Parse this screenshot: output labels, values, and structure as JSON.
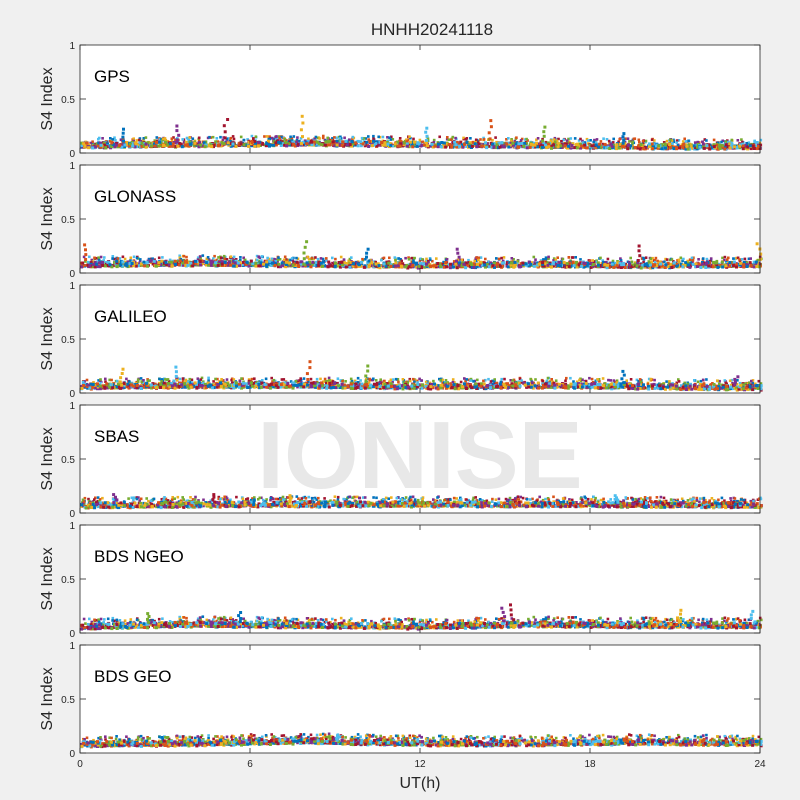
{
  "chart_data": {
    "type": "scatter",
    "title": "HNHH20241118",
    "xlabel": "UT(h)",
    "ylabel": "S4 Index",
    "xlim": [
      0,
      24
    ],
    "ylim": [
      0,
      1
    ],
    "xticks": [
      0,
      6,
      12,
      18,
      24
    ],
    "yticks": [
      0,
      0.5,
      1
    ],
    "ytick_labels": [
      "0",
      "0.5",
      "1"
    ],
    "grid": false,
    "watermark": "IONISE",
    "series_colors": [
      "#0072BD",
      "#D95319",
      "#EDB120",
      "#7E2F8E",
      "#77AC30",
      "#4DBEEE",
      "#A2142F"
    ],
    "panels": [
      {
        "label": "GPS",
        "baseline": [
          [
            0,
            0.07
          ],
          [
            4,
            0.08
          ],
          [
            8,
            0.09
          ],
          [
            12,
            0.08
          ],
          [
            16,
            0.07
          ],
          [
            20,
            0.06
          ],
          [
            24,
            0.06
          ]
        ],
        "spikes": [
          [
            1.5,
            0.22
          ],
          [
            3.4,
            0.25
          ],
          [
            5.1,
            0.31
          ],
          [
            7.8,
            0.34
          ],
          [
            12.2,
            0.23
          ],
          [
            14.4,
            0.3
          ],
          [
            16.3,
            0.24
          ],
          [
            19.1,
            0.18
          ]
        ]
      },
      {
        "label": "GLONASS",
        "baseline": [
          [
            0,
            0.08
          ],
          [
            4,
            0.09
          ],
          [
            8,
            0.08
          ],
          [
            12,
            0.07
          ],
          [
            16,
            0.08
          ],
          [
            20,
            0.07
          ],
          [
            24,
            0.08
          ]
        ],
        "spikes": [
          [
            0.1,
            0.26
          ],
          [
            7.9,
            0.29
          ],
          [
            10.1,
            0.22
          ],
          [
            13.3,
            0.22
          ],
          [
            19.7,
            0.25
          ],
          [
            23.9,
            0.27
          ]
        ]
      },
      {
        "label": "GALILEO",
        "baseline": [
          [
            0,
            0.06
          ],
          [
            4,
            0.07
          ],
          [
            8,
            0.07
          ],
          [
            12,
            0.06
          ],
          [
            16,
            0.07
          ],
          [
            20,
            0.06
          ],
          [
            24,
            0.05
          ]
        ],
        "spikes": [
          [
            1.4,
            0.22
          ],
          [
            3.3,
            0.24
          ],
          [
            8.0,
            0.29
          ],
          [
            10.1,
            0.25
          ],
          [
            19.1,
            0.2
          ],
          [
            23.1,
            0.15
          ]
        ]
      },
      {
        "label": "SBAS",
        "baseline": [
          [
            0,
            0.07
          ],
          [
            6,
            0.08
          ],
          [
            12,
            0.08
          ],
          [
            18,
            0.08
          ],
          [
            24,
            0.07
          ]
        ],
        "spikes": [
          [
            1.2,
            0.17
          ],
          [
            4.7,
            0.17
          ],
          [
            7.4,
            0.16
          ],
          [
            18.9,
            0.16
          ]
        ]
      },
      {
        "label": "BDS NGEO",
        "baseline": [
          [
            0,
            0.06
          ],
          [
            4,
            0.08
          ],
          [
            8,
            0.07
          ],
          [
            12,
            0.06
          ],
          [
            16,
            0.08
          ],
          [
            20,
            0.07
          ],
          [
            24,
            0.07
          ]
        ],
        "spikes": [
          [
            2.4,
            0.18
          ],
          [
            5.6,
            0.19
          ],
          [
            14.9,
            0.23
          ],
          [
            15.2,
            0.26
          ],
          [
            21.1,
            0.21
          ],
          [
            23.7,
            0.2
          ]
        ]
      },
      {
        "label": "BDS GEO",
        "baseline": [
          [
            0,
            0.08
          ],
          [
            4,
            0.09
          ],
          [
            8,
            0.11
          ],
          [
            12,
            0.09
          ],
          [
            16,
            0.09
          ],
          [
            20,
            0.1
          ],
          [
            24,
            0.09
          ]
        ],
        "spikes": [
          [
            9.0,
            0.16
          ],
          [
            19.2,
            0.14
          ]
        ]
      }
    ]
  }
}
